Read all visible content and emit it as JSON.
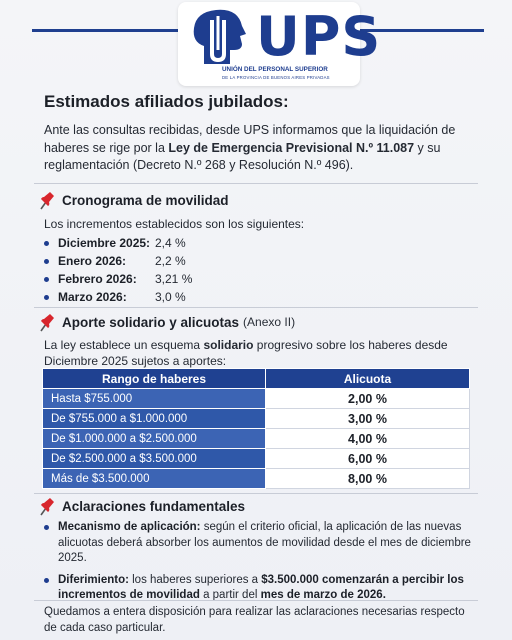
{
  "header": {
    "logo_text": "UPS",
    "logo_subtitle": "UNIÓN DEL PERSONAL SUPERIOR",
    "logo_tagline": "DE LA PROVINCIA DE BUENOS AIRES PRIVADAS",
    "brand_color": "#1e3d8f"
  },
  "title": "Estimados afiliados jubilados:",
  "intro": {
    "part1": "Ante las consultas recibidas, desde UPS informamos que la liquidación de haberes se rige por la ",
    "law": "Ley de Emergencia Previsional N.º 11.087",
    "part2": " y su reglamentación (Decreto N.º 268 y Resolución N.º 496)."
  },
  "cronograma": {
    "icon": "pushpin-icon",
    "title": "Cronograma de movilidad",
    "lead": "Los incrementos establecidos son los siguientes:",
    "items": [
      {
        "month": "Diciembre 2025:",
        "value": "2,4 %"
      },
      {
        "month": "Enero 2026:",
        "value": "2,2 %"
      },
      {
        "month": "Febrero 2026:",
        "value": "3,21 %"
      },
      {
        "month": "Marzo 2026:",
        "value": "3,0 %"
      }
    ]
  },
  "aporte": {
    "icon": "pushpin-icon",
    "title": "Aporte solidario y alicuotas",
    "note": "(Anexo II)",
    "lead1": "La ley establece un esquema ",
    "lead_bold": "solidario",
    "lead2": " progresivo sobre los haberes desde Diciembre 2025 sujetos a aportes:",
    "table": {
      "headers": [
        "Rango de haberes",
        "Alicuota"
      ],
      "rows": [
        {
          "range": "Hasta $755.000",
          "rate": "2,00 %"
        },
        {
          "range": "De $755.000 a $1.000.000",
          "rate": "3,00 %"
        },
        {
          "range": "De $1.000.000 a $2.500.000",
          "rate": "4,00 %"
        },
        {
          "range": "De $2.500.000 a $3.500.000",
          "rate": "6,00 %"
        },
        {
          "range": "Más de $3.500.000",
          "rate": "8,00 %"
        }
      ]
    }
  },
  "aclaraciones": {
    "icon": "pushpin-icon",
    "title": "Aclaraciones fundamentales",
    "item1_bold": "Mecanismo de aplicación:",
    "item1_text": " según el criterio oficial, la aplicación de las nuevas alicuotas deberá absorber los aumentos de movilidad desde el mes de diciembre 2025.",
    "item2_bold1": "Diferimiento:",
    "item2_text1": " los haberes superiores a ",
    "item2_bold2": "$3.500.000 comenzarán a percibir los incrementos de movilidad",
    "item2_text2": " a partir del ",
    "item2_bold3": "mes de marzo de 2026."
  },
  "closing": "Quedamos a entera disposición para realizar las aclaraciones necesarias respecto de cada caso particular."
}
